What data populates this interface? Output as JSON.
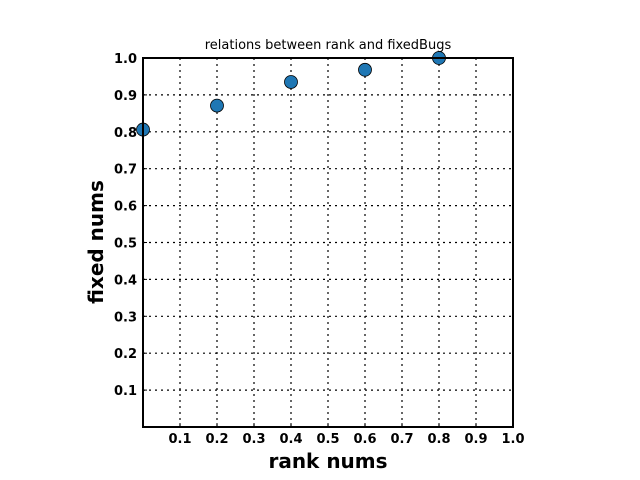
{
  "chart_data": {
    "type": "scatter",
    "title": "relations between rank and fixedBugs",
    "xlabel": "rank nums",
    "ylabel": "fixed nums",
    "xlim": [
      0,
      1.0
    ],
    "ylim": [
      0,
      1.0
    ],
    "grid": true,
    "x_ticks": [
      "0.1",
      "0.2",
      "0.3",
      "0.4",
      "0.5",
      "0.6",
      "0.7",
      "0.8",
      "0.9",
      "1.0"
    ],
    "y_ticks": [
      "0.1",
      "0.2",
      "0.3",
      "0.4",
      "0.5",
      "0.6",
      "0.7",
      "0.8",
      "0.9",
      "1.0"
    ],
    "marker_color": "#1f77b4",
    "points": [
      {
        "x": 0.0,
        "y": 0.806
      },
      {
        "x": 0.2,
        "y": 0.871
      },
      {
        "x": 0.4,
        "y": 0.935
      },
      {
        "x": 0.6,
        "y": 0.968
      },
      {
        "x": 0.8,
        "y": 1.0
      }
    ]
  }
}
